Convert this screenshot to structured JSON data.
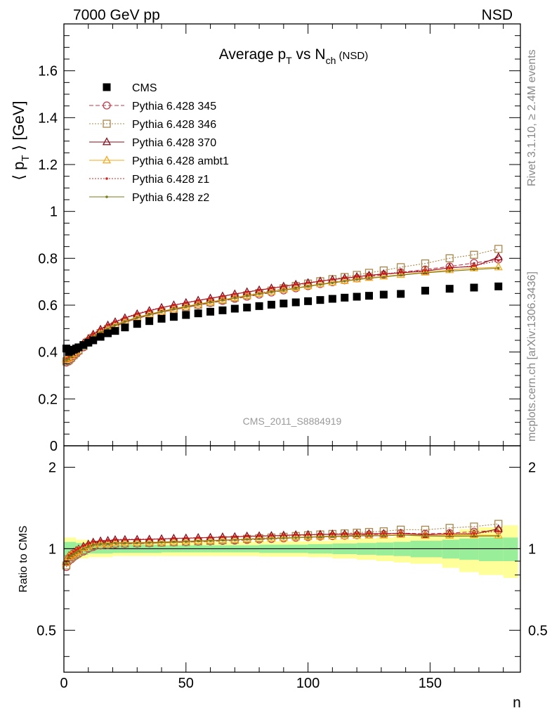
{
  "header": {
    "left": "7000 GeV pp",
    "right": "NSD"
  },
  "main_panel": {
    "title": "Average p",
    "title_sub1": "T",
    "title_mid": " vs N",
    "title_sub2": "ch",
    "title_suffix": " (NSD)",
    "ylabel": "⟨ p",
    "ylabel_sub": "T",
    "ylabel_suffix": " ⟩ [GeV]",
    "watermark": "CMS_2011_S8884919"
  },
  "ratio_panel": {
    "ylabel": "Ratio to CMS",
    "xlabel": "n"
  },
  "side_text": {
    "rivet": "Rivet 3.1.10, ≥ 2.4M events",
    "mcplots": "mcplots.cern.ch [arXiv:1306.3436]"
  },
  "legend": [
    {
      "label": "CMS",
      "color": "#000000",
      "marker": "filled-square",
      "line": "none"
    },
    {
      "label": "Pythia 6.428 345",
      "color": "#c0394b",
      "marker": "open-circle",
      "line": "dashed"
    },
    {
      "label": "Pythia 6.428 346",
      "color": "#a8874a",
      "marker": "open-square",
      "line": "dotted"
    },
    {
      "label": "Pythia 6.428 370",
      "color": "#8b0a1a",
      "marker": "open-triangle",
      "line": "solid"
    },
    {
      "label": "Pythia 6.428 ambt1",
      "color": "#f5a81c",
      "marker": "open-triangle",
      "line": "solid"
    },
    {
      "label": "Pythia 6.428 z1",
      "color": "#d62020",
      "marker": "dot",
      "line": "dotted"
    },
    {
      "label": "Pythia 6.428 z2",
      "color": "#7a7a18",
      "marker": "dot",
      "line": "solid"
    }
  ],
  "chart_data": {
    "type": "scatter",
    "x_range": [
      0,
      187
    ],
    "main_ylim": [
      0,
      1.8
    ],
    "ratio_ylim": [
      0.35,
      2.4
    ],
    "main_yticks": [
      "0",
      "0.2",
      "0.4",
      "0.6",
      "0.8",
      "1",
      "1.2",
      "1.4",
      "1.6"
    ],
    "main_ytick_values": [
      0,
      0.2,
      0.4,
      0.6,
      0.8,
      1.0,
      1.2,
      1.4,
      1.6
    ],
    "ratio_yticks": [
      "0.5",
      "1",
      "2"
    ],
    "ratio_ytick_values": [
      0.5,
      1,
      2
    ],
    "xticks": [
      "0",
      "50",
      "100",
      "150"
    ],
    "xtick_values": [
      0,
      50,
      100,
      150
    ],
    "x": [
      1,
      2,
      3,
      4,
      5,
      6,
      8,
      10,
      12,
      15,
      18,
      21,
      25,
      30,
      35,
      40,
      45,
      50,
      55,
      60,
      65,
      70,
      75,
      80,
      85,
      90,
      95,
      100,
      105,
      110,
      115,
      120,
      125,
      131,
      138,
      148,
      158,
      168,
      178
    ],
    "series": [
      {
        "name": "CMS",
        "values": [
          0.415,
          0.4,
          0.405,
          0.41,
          0.415,
          0.42,
          0.43,
          0.44,
          0.45,
          0.465,
          0.48,
          0.49,
          0.505,
          0.52,
          0.532,
          0.542,
          0.55,
          0.558,
          0.565,
          0.572,
          0.578,
          0.585,
          0.59,
          0.596,
          0.602,
          0.607,
          0.612,
          0.617,
          0.622,
          0.627,
          0.632,
          0.636,
          0.64,
          0.645,
          0.648,
          0.662,
          0.67,
          0.675,
          0.68
        ]
      },
      {
        "name": "Pythia 6.428 345",
        "values": [
          0.355,
          0.36,
          0.37,
          0.382,
          0.392,
          0.402,
          0.42,
          0.44,
          0.457,
          0.478,
          0.495,
          0.509,
          0.526,
          0.543,
          0.557,
          0.57,
          0.58,
          0.59,
          0.6,
          0.609,
          0.618,
          0.627,
          0.636,
          0.645,
          0.654,
          0.663,
          0.672,
          0.681,
          0.69,
          0.698,
          0.706,
          0.714,
          0.722,
          0.73,
          0.74,
          0.752,
          0.765,
          0.78,
          0.795
        ]
      },
      {
        "name": "Pythia 6.428 346",
        "values": [
          0.36,
          0.366,
          0.376,
          0.387,
          0.397,
          0.407,
          0.425,
          0.444,
          0.461,
          0.481,
          0.498,
          0.512,
          0.528,
          0.545,
          0.559,
          0.571,
          0.582,
          0.592,
          0.602,
          0.612,
          0.622,
          0.632,
          0.642,
          0.652,
          0.662,
          0.672,
          0.682,
          0.692,
          0.702,
          0.711,
          0.72,
          0.729,
          0.738,
          0.748,
          0.762,
          0.778,
          0.8,
          0.815,
          0.84
        ]
      },
      {
        "name": "Pythia 6.428 370",
        "values": [
          0.37,
          0.376,
          0.386,
          0.397,
          0.408,
          0.418,
          0.438,
          0.457,
          0.475,
          0.496,
          0.514,
          0.528,
          0.545,
          0.562,
          0.576,
          0.589,
          0.6,
          0.61,
          0.62,
          0.629,
          0.638,
          0.647,
          0.656,
          0.664,
          0.672,
          0.68,
          0.688,
          0.695,
          0.702,
          0.709,
          0.715,
          0.721,
          0.727,
          0.733,
          0.738,
          0.745,
          0.76,
          0.765,
          0.805
        ]
      },
      {
        "name": "Pythia 6.428 ambt1",
        "values": [
          0.368,
          0.374,
          0.384,
          0.394,
          0.404,
          0.414,
          0.432,
          0.45,
          0.467,
          0.486,
          0.502,
          0.516,
          0.532,
          0.548,
          0.562,
          0.574,
          0.585,
          0.595,
          0.605,
          0.614,
          0.623,
          0.632,
          0.641,
          0.65,
          0.658,
          0.666,
          0.674,
          0.682,
          0.69,
          0.697,
          0.704,
          0.711,
          0.717,
          0.723,
          0.73,
          0.74,
          0.75,
          0.758,
          0.762
        ]
      },
      {
        "name": "Pythia 6.428 z1",
        "values": [
          0.372,
          0.378,
          0.388,
          0.4,
          0.411,
          0.421,
          0.441,
          0.46,
          0.478,
          0.499,
          0.516,
          0.53,
          0.547,
          0.564,
          0.578,
          0.59,
          0.601,
          0.611,
          0.621,
          0.63,
          0.639,
          0.648,
          0.657,
          0.665,
          0.673,
          0.681,
          0.689,
          0.696,
          0.703,
          0.71,
          0.716,
          0.722,
          0.728,
          0.734,
          0.74,
          0.748,
          0.758,
          0.768,
          0.79
        ]
      },
      {
        "name": "Pythia 6.428 z2",
        "values": [
          0.366,
          0.372,
          0.382,
          0.392,
          0.402,
          0.412,
          0.43,
          0.448,
          0.465,
          0.484,
          0.5,
          0.514,
          0.53,
          0.546,
          0.56,
          0.572,
          0.583,
          0.593,
          0.603,
          0.612,
          0.621,
          0.63,
          0.639,
          0.648,
          0.656,
          0.664,
          0.672,
          0.68,
          0.688,
          0.695,
          0.702,
          0.709,
          0.715,
          0.72,
          0.728,
          0.738,
          0.745,
          0.752,
          0.758
        ]
      }
    ],
    "ratio_bands": {
      "x_edges": [
        0,
        5,
        10,
        20,
        40,
        60,
        80,
        100,
        110,
        120,
        128,
        135,
        142,
        155,
        162,
        170,
        180,
        186
      ],
      "green": [
        0.06,
        0.05,
        0.04,
        0.035,
        0.03,
        0.03,
        0.035,
        0.04,
        0.045,
        0.05,
        0.055,
        0.06,
        0.07,
        0.08,
        0.09,
        0.1,
        0.1
      ],
      "yellow": [
        0.1,
        0.08,
        0.07,
        0.06,
        0.06,
        0.06,
        0.065,
        0.07,
        0.08,
        0.09,
        0.1,
        0.11,
        0.12,
        0.15,
        0.18,
        0.2,
        0.22
      ]
    }
  }
}
